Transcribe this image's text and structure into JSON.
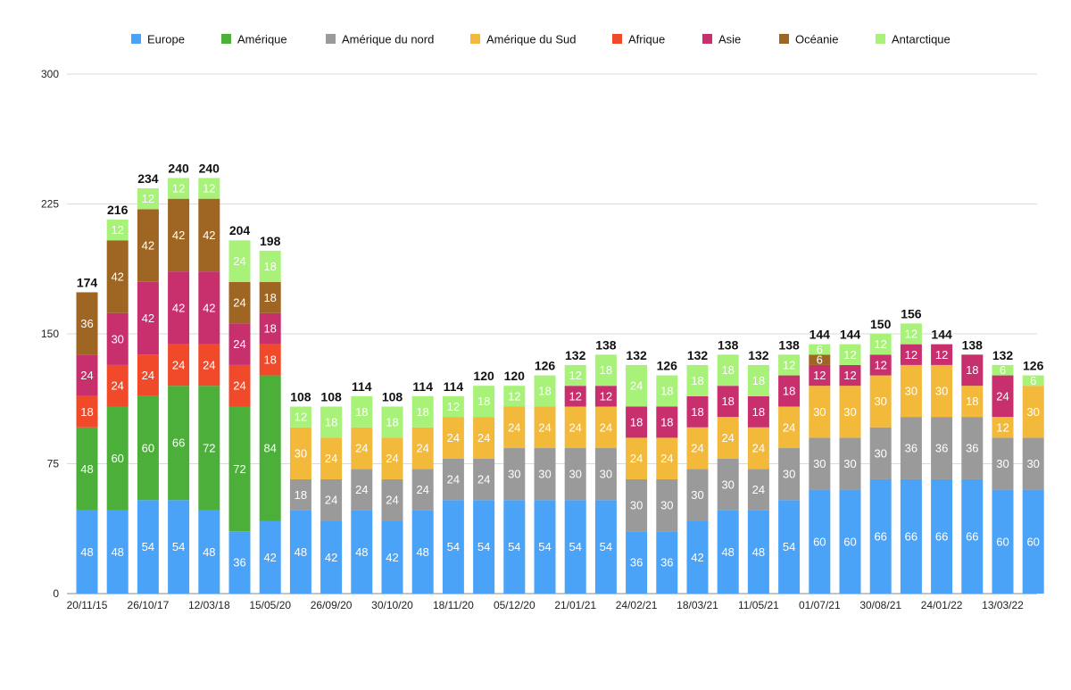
{
  "chart_data": {
    "type": "bar",
    "stacked": true,
    "ylim": [
      0,
      300
    ],
    "yticks": [
      0,
      75,
      150,
      225,
      300
    ],
    "grid": true,
    "legend_position": "top",
    "xtick_labels": [
      "20/11/15",
      "26/10/17",
      "12/03/18",
      "15/05/20",
      "26/09/20",
      "30/10/20",
      "18/11/20",
      "05/12/20",
      "21/01/21",
      "24/02/21",
      "18/03/21",
      "11/05/21",
      "01/07/21",
      "30/08/21",
      "24/01/22",
      "13/03/22"
    ],
    "series": [
      {
        "name": "Europe",
        "color": "#4aa3f7",
        "values": [
          48,
          48,
          54,
          54,
          48,
          36,
          42,
          48,
          42,
          48,
          42,
          48,
          54,
          54,
          54,
          54,
          54,
          54,
          36,
          36,
          42,
          48,
          48,
          54,
          60,
          60,
          66,
          66,
          66,
          66,
          60,
          60
        ]
      },
      {
        "name": "Amérique",
        "color": "#4caf3a",
        "values": [
          48,
          60,
          60,
          66,
          72,
          72,
          84,
          0,
          0,
          0,
          0,
          0,
          0,
          0,
          0,
          0,
          0,
          0,
          0,
          0,
          0,
          0,
          0,
          0,
          0,
          0,
          0,
          0,
          0,
          0,
          0,
          0
        ]
      },
      {
        "name": "Amérique du nord",
        "color": "#9a9a9a",
        "values": [
          0,
          0,
          0,
          0,
          0,
          0,
          0,
          18,
          24,
          24,
          24,
          24,
          24,
          24,
          30,
          30,
          30,
          30,
          30,
          30,
          30,
          30,
          24,
          30,
          30,
          30,
          30,
          36,
          36,
          36,
          30,
          30
        ]
      },
      {
        "name": "Amérique du Sud",
        "color": "#f2b93b",
        "values": [
          0,
          0,
          0,
          0,
          0,
          0,
          0,
          30,
          24,
          24,
          24,
          24,
          24,
          24,
          24,
          24,
          24,
          24,
          24,
          24,
          24,
          24,
          24,
          24,
          30,
          30,
          30,
          30,
          30,
          18,
          12,
          30
        ]
      },
      {
        "name": "Afrique",
        "color": "#f04a2a",
        "values": [
          18,
          24,
          24,
          24,
          24,
          24,
          18,
          0,
          0,
          0,
          0,
          0,
          0,
          0,
          0,
          0,
          0,
          0,
          0,
          0,
          0,
          0,
          0,
          0,
          0,
          0,
          0,
          0,
          0,
          0,
          0,
          0
        ]
      },
      {
        "name": "Asie",
        "color": "#c7306d",
        "values": [
          24,
          30,
          42,
          42,
          42,
          24,
          18,
          0,
          0,
          0,
          0,
          0,
          0,
          0,
          0,
          0,
          12,
          12,
          18,
          18,
          18,
          18,
          18,
          18,
          12,
          12,
          12,
          12,
          12,
          18,
          24,
          0
        ]
      },
      {
        "name": "Océanie",
        "color": "#9e6622",
        "values": [
          36,
          42,
          42,
          42,
          42,
          24,
          18,
          0,
          0,
          0,
          0,
          0,
          0,
          0,
          0,
          0,
          0,
          0,
          0,
          0,
          0,
          0,
          0,
          0,
          6,
          0,
          0,
          0,
          0,
          0,
          0,
          0
        ]
      },
      {
        "name": "Antarctique",
        "color": "#a8f27a",
        "values": [
          0,
          12,
          12,
          12,
          12,
          24,
          18,
          12,
          18,
          18,
          18,
          18,
          12,
          18,
          12,
          18,
          12,
          18,
          24,
          18,
          18,
          18,
          18,
          12,
          6,
          12,
          12,
          12,
          0,
          0,
          6,
          6
        ]
      }
    ],
    "totals": [
      174,
      216,
      234,
      240,
      240,
      204,
      198,
      108,
      108,
      114,
      108,
      114,
      114,
      120,
      120,
      126,
      132,
      138,
      132,
      126,
      132,
      138,
      132,
      138,
      144,
      144,
      150,
      156,
      144,
      138,
      132,
      126
    ]
  }
}
